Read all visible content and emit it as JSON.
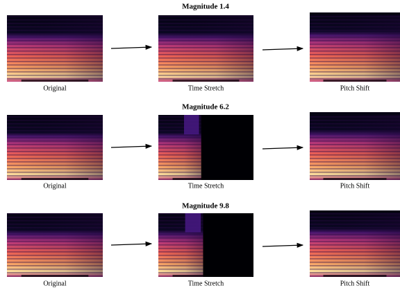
{
  "rows": [
    {
      "title": "Magnitude 1.4",
      "panels": [
        {
          "label": "Original"
        },
        {
          "label": "Time Stretch"
        },
        {
          "label": "Pitch Shift"
        }
      ]
    },
    {
      "title": "Magnitude 6.2",
      "panels": [
        {
          "label": "Original"
        },
        {
          "label": "Time Stretch"
        },
        {
          "label": "Pitch Shift"
        }
      ]
    },
    {
      "title": "Magnitude 9.8",
      "panels": [
        {
          "label": "Original"
        },
        {
          "label": "Time Stretch"
        },
        {
          "label": "Pitch Shift"
        }
      ]
    }
  ]
}
